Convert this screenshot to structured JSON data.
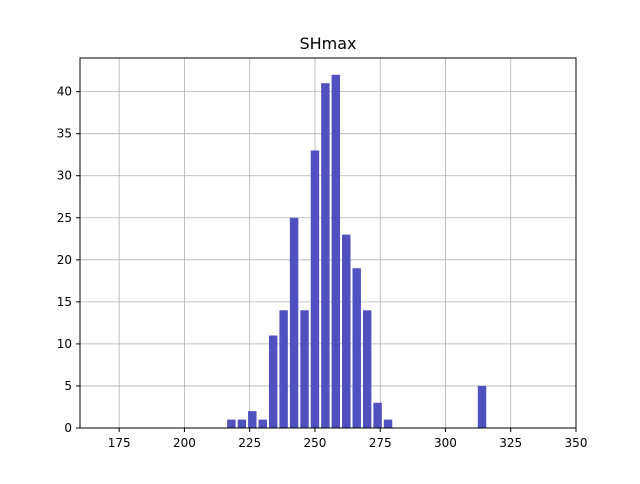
{
  "chart_data": {
    "type": "bar",
    "title": "SHmax",
    "xlabel": "",
    "ylabel": "",
    "xlim": [
      160,
      350
    ],
    "ylim": [
      0,
      44
    ],
    "x_ticks": [
      175,
      200,
      225,
      250,
      275,
      300,
      325,
      350
    ],
    "y_ticks": [
      0,
      5,
      10,
      15,
      20,
      25,
      30,
      35,
      40
    ],
    "grid": true,
    "bin_width": 4,
    "bar_color": "#5050c0",
    "bins": [
      {
        "x": 218,
        "value": 1
      },
      {
        "x": 222,
        "value": 1
      },
      {
        "x": 226,
        "value": 2
      },
      {
        "x": 230,
        "value": 1
      },
      {
        "x": 234,
        "value": 11
      },
      {
        "x": 238,
        "value": 14
      },
      {
        "x": 242,
        "value": 25
      },
      {
        "x": 246,
        "value": 14
      },
      {
        "x": 250,
        "value": 33
      },
      {
        "x": 254,
        "value": 41
      },
      {
        "x": 258,
        "value": 42
      },
      {
        "x": 262,
        "value": 23
      },
      {
        "x": 266,
        "value": 19
      },
      {
        "x": 270,
        "value": 14
      },
      {
        "x": 274,
        "value": 3
      },
      {
        "x": 278,
        "value": 1
      },
      {
        "x": 314,
        "value": 5
      }
    ]
  }
}
